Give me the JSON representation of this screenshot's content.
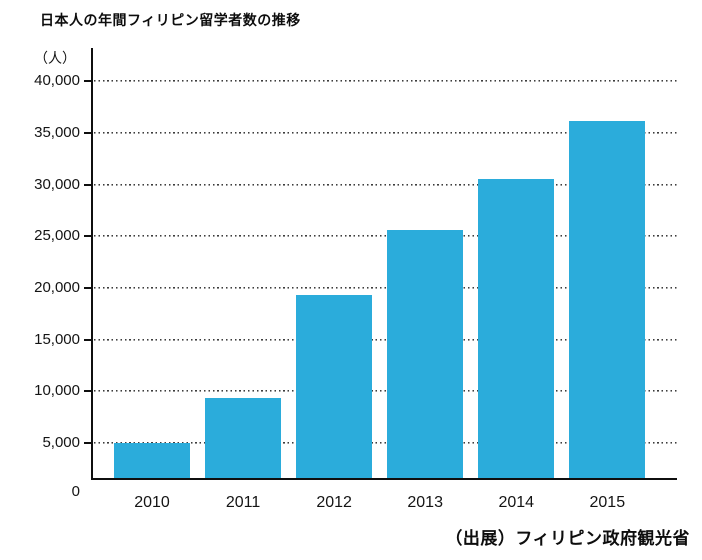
{
  "chart_data": {
    "type": "bar",
    "title": "日本人の年間フィリピン留学者数の推移",
    "unit_label": "（人）",
    "source": "（出展）フィリピン政府観光省",
    "categories": [
      "2010",
      "2011",
      "2012",
      "2013",
      "2014",
      "2015"
    ],
    "values": [
      5000,
      9400,
      19300,
      25600,
      30500,
      36100
    ],
    "bar_color": "#2BACDB",
    "ylim": [
      0,
      40000
    ],
    "ytick_interval": 5000,
    "yticks": [
      {
        "value": 0,
        "label": "0"
      },
      {
        "value": 5000,
        "label": "5,000"
      },
      {
        "value": 10000,
        "label": "10,000"
      },
      {
        "value": 15000,
        "label": "15,000"
      },
      {
        "value": 20000,
        "label": "20,000"
      },
      {
        "value": 25000,
        "label": "25,000"
      },
      {
        "value": 30000,
        "label": "30,000"
      },
      {
        "value": 35000,
        "label": "35,000"
      },
      {
        "value": 40000,
        "label": "40,000"
      }
    ],
    "grid": "horizontal dotted",
    "legend": "none"
  }
}
